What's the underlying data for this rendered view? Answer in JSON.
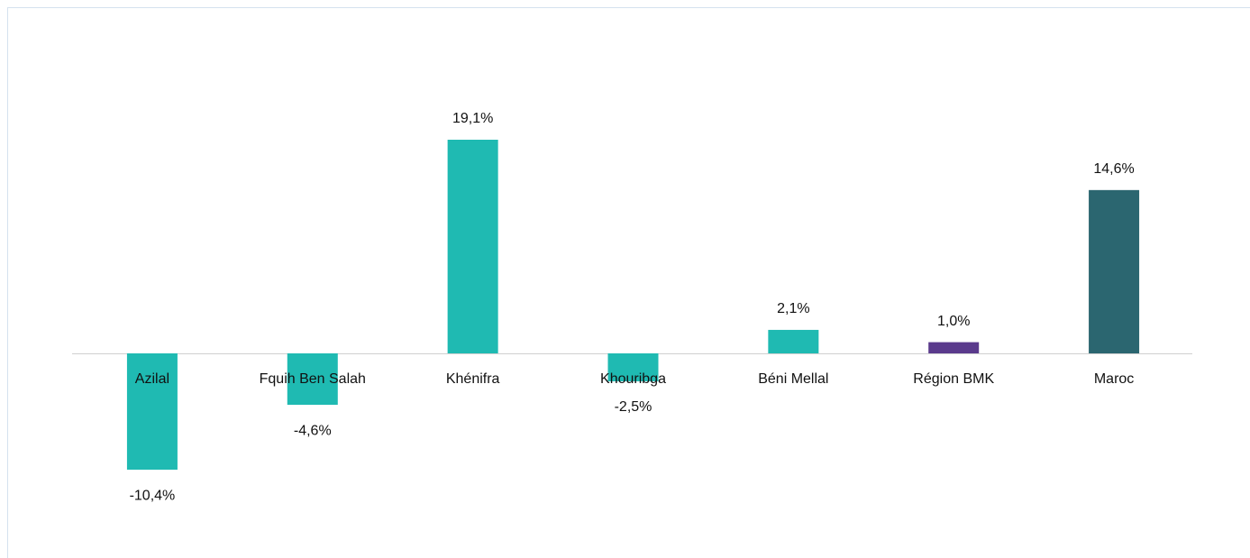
{
  "chart_data": {
    "type": "bar",
    "categories": [
      "Azilal",
      "Fquih Ben Salah",
      "Khénifra",
      "Khouribga",
      "Béni Mellal",
      "Région BMK",
      "Maroc"
    ],
    "values": [
      -10.4,
      -4.6,
      19.1,
      -2.5,
      2.1,
      1.0,
      14.6
    ],
    "value_labels": [
      "-10,4%",
      "-4,6%",
      "19,1%",
      "-2,5%",
      "2,1%",
      "1,0%",
      "14,6%"
    ],
    "colors": [
      "#1fbab2",
      "#1fbab2",
      "#1fbab2",
      "#1fbab2",
      "#1fbab2",
      "#5a3a8c",
      "#2b6670"
    ]
  }
}
